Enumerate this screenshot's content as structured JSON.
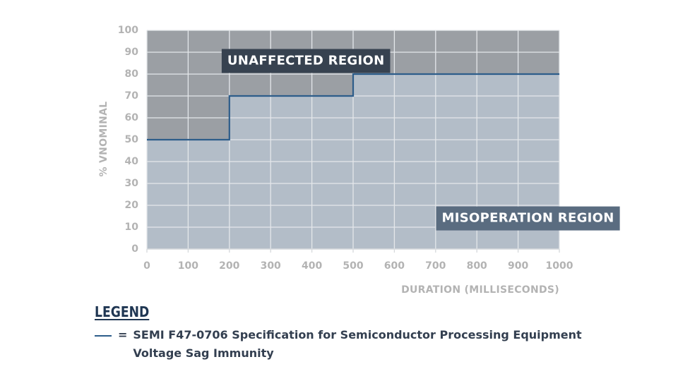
{
  "chart_data": {
    "type": "line",
    "title": "",
    "xlabel": "DURATION (MILLISECONDS)",
    "ylabel": "% VNOMINAL",
    "xlim": [
      0,
      1000
    ],
    "ylim": [
      0,
      100
    ],
    "xticks": [
      0,
      100,
      200,
      300,
      400,
      500,
      600,
      700,
      800,
      900,
      1000
    ],
    "yticks": [
      0,
      10,
      20,
      30,
      40,
      50,
      60,
      70,
      80,
      90,
      100
    ],
    "grid": true,
    "series": [
      {
        "name": "SEMI F47-0706 Specification for Semiconductor Processing Equipment Voltage Sag Immunity",
        "step": true,
        "x": [
          0,
          200,
          200,
          500,
          500,
          1000
        ],
        "y": [
          50,
          50,
          70,
          70,
          80,
          80
        ],
        "color": "#2d5d8a"
      }
    ],
    "regions": [
      {
        "label": "UNAFFECTED REGION",
        "position": "above-curve",
        "color": "#9b9fa4",
        "label_bg": "#374250",
        "anchor": [
          195,
          86
        ]
      },
      {
        "label": "MISOPERATION REGION",
        "position": "below-curve",
        "color": "#b3bdc8",
        "label_bg": "#5a6c80",
        "anchor": [
          715,
          14
        ]
      }
    ]
  },
  "legend": {
    "title": "LEGEND",
    "equals": "=",
    "entry": "SEMI F47-0706 Specification for Semiconductor Processing Equipment Voltage Sag Immunity",
    "line_color": "#2d5d8a"
  }
}
